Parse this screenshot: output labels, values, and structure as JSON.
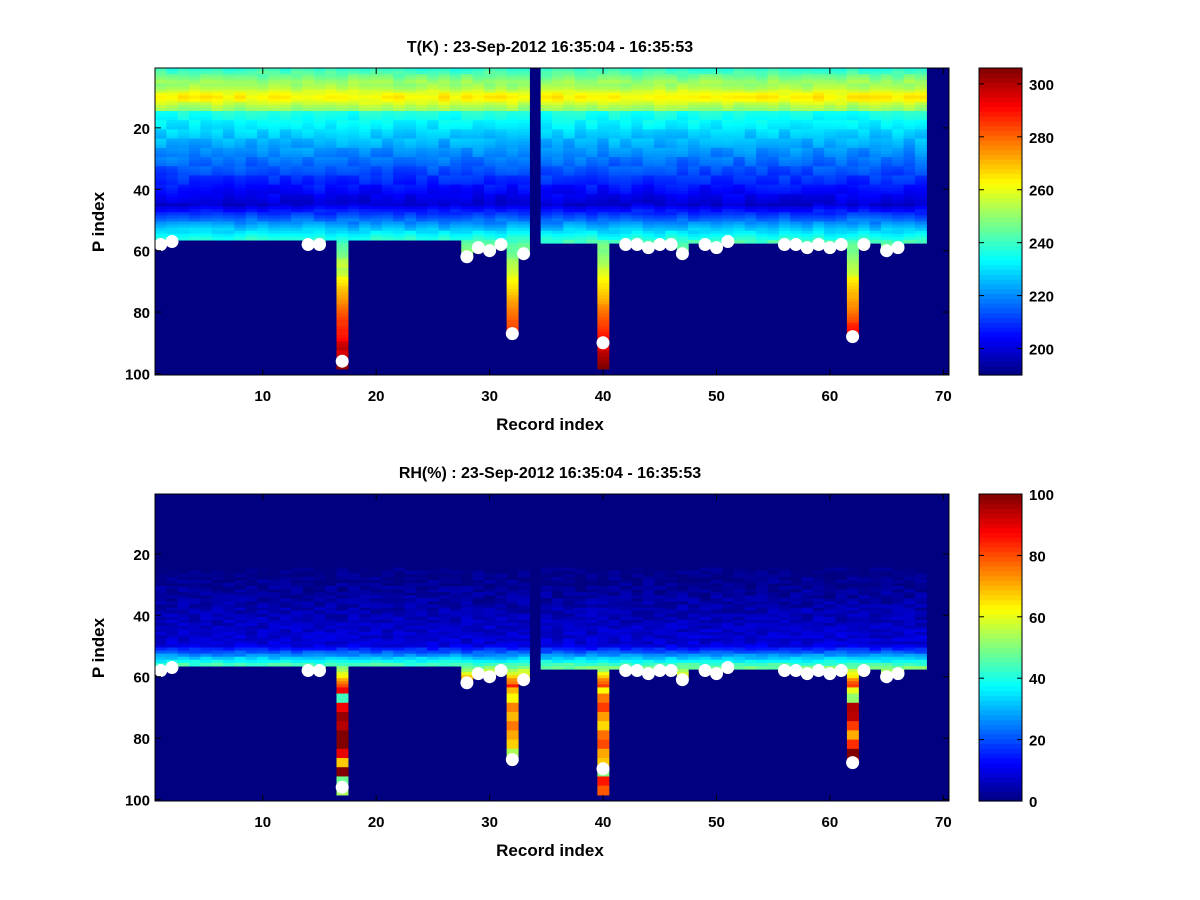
{
  "chart_data": [
    {
      "type": "heatmap",
      "title": "T(K) : 23-Sep-2012 16:35:04 - 16:35:53",
      "xlabel": "Record index",
      "ylabel": "P index",
      "xlim": [
        0.5,
        70.5
      ],
      "ylim": [
        0.5,
        100.5
      ],
      "y_reversed": true,
      "xticks": [
        10,
        20,
        30,
        40,
        50,
        60,
        70
      ],
      "yticks": [
        20,
        40,
        60,
        80,
        100
      ],
      "colormap": "jet",
      "colorbar": {
        "range": [
          190,
          306
        ],
        "ticks": [
          200,
          220,
          240,
          260,
          280,
          300
        ]
      },
      "records_x": 68,
      "levels": 98,
      "gap_records": [
        34
      ],
      "surface_index": [
        58,
        57,
        57,
        57,
        57,
        57,
        57,
        57,
        57,
        57,
        57,
        57,
        57,
        58,
        58,
        57,
        96,
        57,
        57,
        57,
        57,
        57,
        57,
        57,
        57,
        57,
        57,
        62,
        59,
        60,
        58,
        87,
        61,
        0,
        58,
        58,
        58,
        58,
        58,
        90,
        58,
        58,
        58,
        59,
        58,
        58,
        61,
        58,
        58,
        59,
        57,
        58,
        58,
        58,
        58,
        58,
        58,
        59,
        58,
        59,
        58,
        88,
        58,
        58,
        60,
        59,
        58,
        58
      ],
      "markers": [
        {
          "x": 1,
          "y": 58
        },
        {
          "x": 2,
          "y": 57
        },
        {
          "x": 14,
          "y": 58
        },
        {
          "x": 15,
          "y": 58
        },
        {
          "x": 17,
          "y": 96
        },
        {
          "x": 28,
          "y": 62
        },
        {
          "x": 29,
          "y": 59
        },
        {
          "x": 30,
          "y": 60
        },
        {
          "x": 31,
          "y": 58
        },
        {
          "x": 32,
          "y": 87
        },
        {
          "x": 33,
          "y": 61
        },
        {
          "x": 40,
          "y": 90
        },
        {
          "x": 42,
          "y": 58
        },
        {
          "x": 43,
          "y": 58
        },
        {
          "x": 44,
          "y": 59
        },
        {
          "x": 45,
          "y": 58
        },
        {
          "x": 46,
          "y": 58
        },
        {
          "x": 47,
          "y": 61
        },
        {
          "x": 49,
          "y": 58
        },
        {
          "x": 50,
          "y": 59
        },
        {
          "x": 51,
          "y": 57
        },
        {
          "x": 56,
          "y": 58
        },
        {
          "x": 57,
          "y": 58
        },
        {
          "x": 58,
          "y": 59
        },
        {
          "x": 59,
          "y": 58
        },
        {
          "x": 60,
          "y": 59
        },
        {
          "x": 61,
          "y": 58
        },
        {
          "x": 62,
          "y": 88
        },
        {
          "x": 63,
          "y": 58
        },
        {
          "x": 65,
          "y": 60
        },
        {
          "x": 66,
          "y": 59
        }
      ]
    },
    {
      "type": "heatmap",
      "title": "RH(%) : 23-Sep-2012 16:35:04 - 16:35:53",
      "xlabel": "Record index",
      "ylabel": "P index",
      "xlim": [
        0.5,
        70.5
      ],
      "ylim": [
        0.5,
        100.5
      ],
      "y_reversed": true,
      "xticks": [
        10,
        20,
        30,
        40,
        50,
        60,
        70
      ],
      "yticks": [
        20,
        40,
        60,
        80,
        100
      ],
      "colormap": "jet",
      "colorbar": {
        "range": [
          0,
          100
        ],
        "ticks": [
          0,
          20,
          40,
          60,
          80,
          100
        ]
      },
      "records_x": 68,
      "levels": 98,
      "gap_records": [
        34
      ],
      "surface_index": [
        58,
        57,
        57,
        57,
        57,
        57,
        57,
        57,
        57,
        57,
        57,
        57,
        57,
        58,
        58,
        57,
        96,
        57,
        57,
        57,
        57,
        57,
        57,
        57,
        57,
        57,
        57,
        62,
        59,
        60,
        58,
        87,
        61,
        0,
        58,
        58,
        58,
        58,
        58,
        90,
        58,
        58,
        58,
        59,
        58,
        58,
        61,
        58,
        58,
        59,
        57,
        58,
        58,
        58,
        58,
        58,
        58,
        59,
        58,
        59,
        58,
        88,
        58,
        58,
        60,
        59,
        58,
        58
      ],
      "markers": [
        {
          "x": 1,
          "y": 58
        },
        {
          "x": 2,
          "y": 57
        },
        {
          "x": 14,
          "y": 58
        },
        {
          "x": 15,
          "y": 58
        },
        {
          "x": 17,
          "y": 96
        },
        {
          "x": 28,
          "y": 62
        },
        {
          "x": 29,
          "y": 59
        },
        {
          "x": 30,
          "y": 60
        },
        {
          "x": 31,
          "y": 58
        },
        {
          "x": 32,
          "y": 87
        },
        {
          "x": 33,
          "y": 61
        },
        {
          "x": 40,
          "y": 90
        },
        {
          "x": 42,
          "y": 58
        },
        {
          "x": 43,
          "y": 58
        },
        {
          "x": 44,
          "y": 59
        },
        {
          "x": 45,
          "y": 58
        },
        {
          "x": 46,
          "y": 58
        },
        {
          "x": 47,
          "y": 61
        },
        {
          "x": 49,
          "y": 58
        },
        {
          "x": 50,
          "y": 59
        },
        {
          "x": 51,
          "y": 57
        },
        {
          "x": 56,
          "y": 58
        },
        {
          "x": 57,
          "y": 58
        },
        {
          "x": 58,
          "y": 59
        },
        {
          "x": 59,
          "y": 58
        },
        {
          "x": 60,
          "y": 59
        },
        {
          "x": 61,
          "y": 58
        },
        {
          "x": 62,
          "y": 88
        },
        {
          "x": 63,
          "y": 58
        },
        {
          "x": 65,
          "y": 60
        },
        {
          "x": 66,
          "y": 59
        }
      ]
    }
  ]
}
